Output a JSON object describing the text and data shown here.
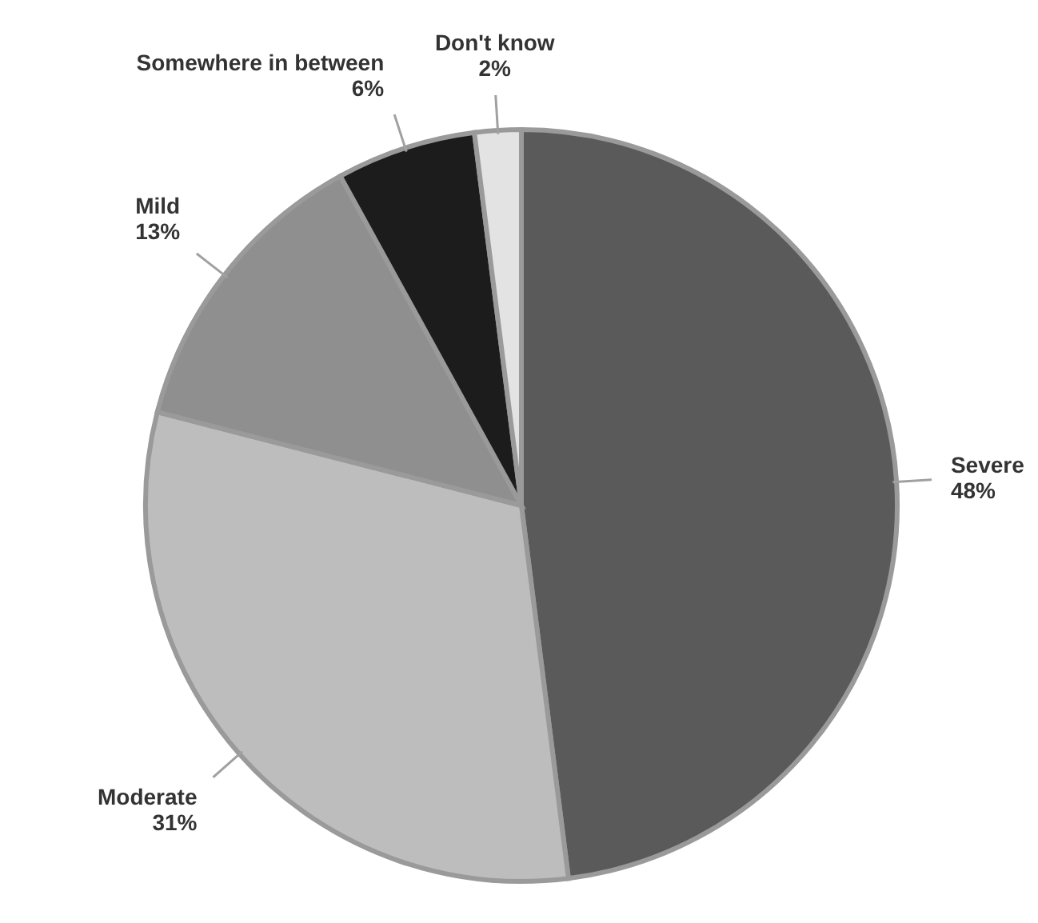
{
  "chart_data": {
    "type": "pie",
    "categories": [
      "Severe",
      "Moderate",
      "Mild",
      "Somewhere in between",
      "Don't know"
    ],
    "values": [
      48,
      31,
      13,
      6,
      2
    ],
    "value_labels": [
      "48%",
      "31%",
      "13%",
      "6%",
      "2%"
    ],
    "colors": [
      "#5a5a5a",
      "#bdbdbd",
      "#8f8f8f",
      "#1c1c1c",
      "#e3e3e3"
    ]
  }
}
